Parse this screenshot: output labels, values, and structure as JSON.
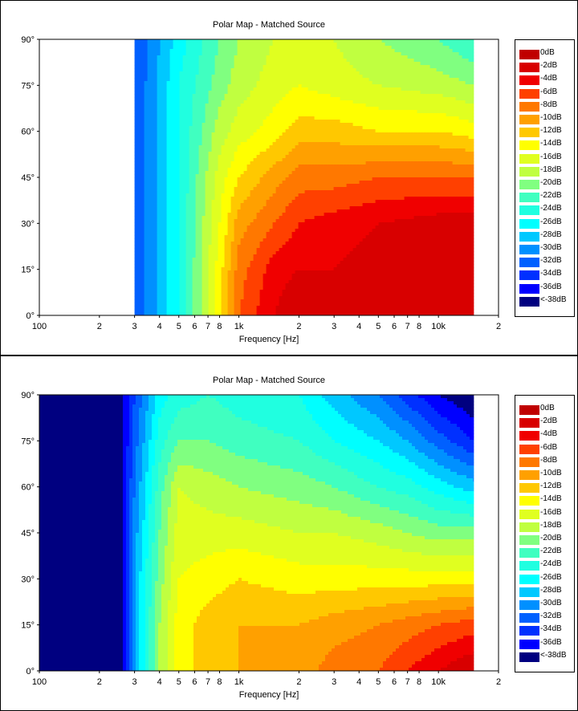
{
  "chart_data": [
    {
      "type": "heatmap",
      "title": "Polar Map - Matched Source",
      "xlabel": "Frequency [Hz]",
      "ylabel": "",
      "x_scale": "log",
      "xlim": [
        100,
        20000
      ],
      "ylim": [
        0,
        90
      ],
      "x_tick_labels": [
        "100",
        "2",
        "3",
        "4",
        "5",
        "6",
        "7",
        "8",
        "1k",
        "2",
        "3",
        "4",
        "5",
        "6",
        "7",
        "8",
        "10k",
        "2"
      ],
      "y_tick_labels": [
        "0°",
        "15°",
        "30°",
        "45°",
        "60°",
        "75°",
        "90°"
      ],
      "data_x_range": [
        300,
        15000
      ],
      "legend_placement": "right",
      "legend": [
        "0dB",
        "-2dB",
        "-4dB",
        "-6dB",
        "-8dB",
        "-10dB",
        "-12dB",
        "-14dB",
        "-16dB",
        "-18dB",
        "-20dB",
        "-22dB",
        "-24dB",
        "-26dB",
        "-28dB",
        "-30dB",
        "-32dB",
        "-34dB",
        "-36dB",
        "<-38dB"
      ],
      "frequencies_hz": [
        300,
        500,
        800,
        1000,
        1500,
        2000,
        3000,
        5000,
        10000,
        15000
      ],
      "angles_deg": [
        0,
        15,
        30,
        45,
        60,
        75,
        90
      ],
      "level_db": [
        [
          -34,
          -26,
          -15,
          -8,
          -4,
          -2,
          -3,
          -3,
          -2,
          -2
        ],
        [
          -34,
          -26,
          -15,
          -9,
          -5,
          -4,
          -4,
          -3,
          -3,
          -3
        ],
        [
          -34,
          -26,
          -16,
          -11,
          -8,
          -6,
          -5,
          -4,
          -3,
          -3
        ],
        [
          -34,
          -26,
          -17,
          -14,
          -11,
          -9,
          -9,
          -8,
          -8,
          -8
        ],
        [
          -34,
          -26,
          -19,
          -17,
          -15,
          -13,
          -13,
          -14,
          -14,
          -15
        ],
        [
          -34,
          -26,
          -21,
          -19,
          -17,
          -16,
          -17,
          -18,
          -19,
          -20
        ],
        [
          -34,
          -27,
          -22,
          -20,
          -18,
          -17,
          -18,
          -20,
          -22,
          -24
        ]
      ]
    },
    {
      "type": "heatmap",
      "title": "Polar Map - Matched Source",
      "xlabel": "Frequency [Hz]",
      "ylabel": "",
      "x_scale": "log",
      "xlim": [
        100,
        20000
      ],
      "ylim": [
        0,
        90
      ],
      "x_tick_labels": [
        "100",
        "2",
        "3",
        "4",
        "5",
        "6",
        "7",
        "8",
        "1k",
        "2",
        "3",
        "4",
        "5",
        "6",
        "7",
        "8",
        "10k",
        "2"
      ],
      "y_tick_labels": [
        "0°",
        "15°",
        "30°",
        "45°",
        "60°",
        "75°",
        "90°"
      ],
      "data_x_range": [
        100,
        15000
      ],
      "legend_placement": "right",
      "legend": [
        "0dB",
        "-2dB",
        "-4dB",
        "-6dB",
        "-8dB",
        "-10dB",
        "-12dB",
        "-14dB",
        "-16dB",
        "-18dB",
        "-20dB",
        "-22dB",
        "-24dB",
        "-26dB",
        "-28dB",
        "-30dB",
        "-32dB",
        "-34dB",
        "-36dB",
        "<-38dB"
      ],
      "frequencies_hz": [
        100,
        250,
        300,
        400,
        500,
        700,
        1000,
        2000,
        3000,
        5000,
        7000,
        10000,
        15000
      ],
      "angles_deg": [
        0,
        15,
        30,
        45,
        60,
        75,
        90
      ],
      "level_db": [
        [
          -40,
          -40,
          -30,
          -20,
          -15,
          -13,
          -12,
          -11,
          -9,
          -8,
          -6,
          -4,
          -2
        ],
        [
          -40,
          -40,
          -30,
          -20,
          -15,
          -13,
          -12,
          -12,
          -11,
          -10,
          -9,
          -8,
          -7
        ],
        [
          -40,
          -40,
          -30,
          -21,
          -16,
          -15,
          -14,
          -15,
          -15,
          -15,
          -15,
          -15,
          -15
        ],
        [
          -40,
          -40,
          -31,
          -22,
          -17,
          -17,
          -17,
          -18,
          -18,
          -19,
          -20,
          -21,
          -21
        ],
        [
          -40,
          -40,
          -32,
          -23,
          -18,
          -19,
          -20,
          -21,
          -22,
          -24,
          -25,
          -27,
          -29
        ],
        [
          -40,
          -40,
          -33,
          -25,
          -22,
          -22,
          -23,
          -24,
          -26,
          -28,
          -30,
          -33,
          -36
        ],
        [
          -40,
          -40,
          -34,
          -27,
          -25,
          -24,
          -25,
          -26,
          -29,
          -32,
          -35,
          -38,
          -40
        ]
      ]
    }
  ],
  "colors": {
    "scale": [
      "#c00000",
      "#d80000",
      "#f00000",
      "#ff4000",
      "#ff7800",
      "#ffa000",
      "#ffc800",
      "#ffff00",
      "#e0ff20",
      "#c0ff40",
      "#80ff80",
      "#40ffc0",
      "#20ffe0",
      "#00ffff",
      "#00c8ff",
      "#0090ff",
      "#0060ff",
      "#0030ff",
      "#0000ff",
      "#000080"
    ]
  }
}
